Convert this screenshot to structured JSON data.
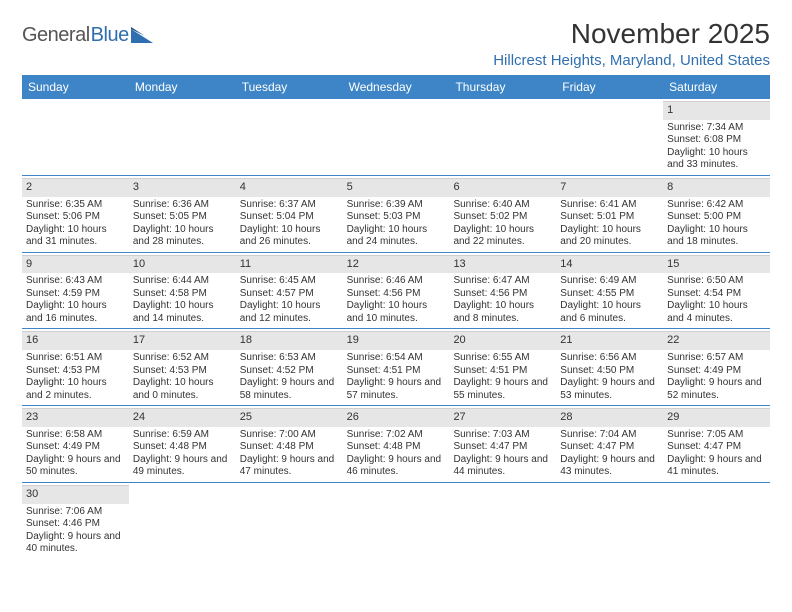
{
  "brand": {
    "part1": "General",
    "part2": "Blue"
  },
  "title": "November 2025",
  "location": "Hillcrest Heights, Maryland, United States",
  "colors": {
    "header_bar": "#3d85c6",
    "accent_text": "#2f6faf",
    "daynum_bg": "#e6e6e6",
    "text": "#333333",
    "background": "#ffffff"
  },
  "day_names": [
    "Sunday",
    "Monday",
    "Tuesday",
    "Wednesday",
    "Thursday",
    "Friday",
    "Saturday"
  ],
  "weeks": [
    [
      {
        "n": "",
        "sr": "",
        "ss": "",
        "dl": ""
      },
      {
        "n": "",
        "sr": "",
        "ss": "",
        "dl": ""
      },
      {
        "n": "",
        "sr": "",
        "ss": "",
        "dl": ""
      },
      {
        "n": "",
        "sr": "",
        "ss": "",
        "dl": ""
      },
      {
        "n": "",
        "sr": "",
        "ss": "",
        "dl": ""
      },
      {
        "n": "",
        "sr": "",
        "ss": "",
        "dl": ""
      },
      {
        "n": "1",
        "sr": "Sunrise: 7:34 AM",
        "ss": "Sunset: 6:08 PM",
        "dl": "Daylight: 10 hours and 33 minutes."
      }
    ],
    [
      {
        "n": "2",
        "sr": "Sunrise: 6:35 AM",
        "ss": "Sunset: 5:06 PM",
        "dl": "Daylight: 10 hours and 31 minutes."
      },
      {
        "n": "3",
        "sr": "Sunrise: 6:36 AM",
        "ss": "Sunset: 5:05 PM",
        "dl": "Daylight: 10 hours and 28 minutes."
      },
      {
        "n": "4",
        "sr": "Sunrise: 6:37 AM",
        "ss": "Sunset: 5:04 PM",
        "dl": "Daylight: 10 hours and 26 minutes."
      },
      {
        "n": "5",
        "sr": "Sunrise: 6:39 AM",
        "ss": "Sunset: 5:03 PM",
        "dl": "Daylight: 10 hours and 24 minutes."
      },
      {
        "n": "6",
        "sr": "Sunrise: 6:40 AM",
        "ss": "Sunset: 5:02 PM",
        "dl": "Daylight: 10 hours and 22 minutes."
      },
      {
        "n": "7",
        "sr": "Sunrise: 6:41 AM",
        "ss": "Sunset: 5:01 PM",
        "dl": "Daylight: 10 hours and 20 minutes."
      },
      {
        "n": "8",
        "sr": "Sunrise: 6:42 AM",
        "ss": "Sunset: 5:00 PM",
        "dl": "Daylight: 10 hours and 18 minutes."
      }
    ],
    [
      {
        "n": "9",
        "sr": "Sunrise: 6:43 AM",
        "ss": "Sunset: 4:59 PM",
        "dl": "Daylight: 10 hours and 16 minutes."
      },
      {
        "n": "10",
        "sr": "Sunrise: 6:44 AM",
        "ss": "Sunset: 4:58 PM",
        "dl": "Daylight: 10 hours and 14 minutes."
      },
      {
        "n": "11",
        "sr": "Sunrise: 6:45 AM",
        "ss": "Sunset: 4:57 PM",
        "dl": "Daylight: 10 hours and 12 minutes."
      },
      {
        "n": "12",
        "sr": "Sunrise: 6:46 AM",
        "ss": "Sunset: 4:56 PM",
        "dl": "Daylight: 10 hours and 10 minutes."
      },
      {
        "n": "13",
        "sr": "Sunrise: 6:47 AM",
        "ss": "Sunset: 4:56 PM",
        "dl": "Daylight: 10 hours and 8 minutes."
      },
      {
        "n": "14",
        "sr": "Sunrise: 6:49 AM",
        "ss": "Sunset: 4:55 PM",
        "dl": "Daylight: 10 hours and 6 minutes."
      },
      {
        "n": "15",
        "sr": "Sunrise: 6:50 AM",
        "ss": "Sunset: 4:54 PM",
        "dl": "Daylight: 10 hours and 4 minutes."
      }
    ],
    [
      {
        "n": "16",
        "sr": "Sunrise: 6:51 AM",
        "ss": "Sunset: 4:53 PM",
        "dl": "Daylight: 10 hours and 2 minutes."
      },
      {
        "n": "17",
        "sr": "Sunrise: 6:52 AM",
        "ss": "Sunset: 4:53 PM",
        "dl": "Daylight: 10 hours and 0 minutes."
      },
      {
        "n": "18",
        "sr": "Sunrise: 6:53 AM",
        "ss": "Sunset: 4:52 PM",
        "dl": "Daylight: 9 hours and 58 minutes."
      },
      {
        "n": "19",
        "sr": "Sunrise: 6:54 AM",
        "ss": "Sunset: 4:51 PM",
        "dl": "Daylight: 9 hours and 57 minutes."
      },
      {
        "n": "20",
        "sr": "Sunrise: 6:55 AM",
        "ss": "Sunset: 4:51 PM",
        "dl": "Daylight: 9 hours and 55 minutes."
      },
      {
        "n": "21",
        "sr": "Sunrise: 6:56 AM",
        "ss": "Sunset: 4:50 PM",
        "dl": "Daylight: 9 hours and 53 minutes."
      },
      {
        "n": "22",
        "sr": "Sunrise: 6:57 AM",
        "ss": "Sunset: 4:49 PM",
        "dl": "Daylight: 9 hours and 52 minutes."
      }
    ],
    [
      {
        "n": "23",
        "sr": "Sunrise: 6:58 AM",
        "ss": "Sunset: 4:49 PM",
        "dl": "Daylight: 9 hours and 50 minutes."
      },
      {
        "n": "24",
        "sr": "Sunrise: 6:59 AM",
        "ss": "Sunset: 4:48 PM",
        "dl": "Daylight: 9 hours and 49 minutes."
      },
      {
        "n": "25",
        "sr": "Sunrise: 7:00 AM",
        "ss": "Sunset: 4:48 PM",
        "dl": "Daylight: 9 hours and 47 minutes."
      },
      {
        "n": "26",
        "sr": "Sunrise: 7:02 AM",
        "ss": "Sunset: 4:48 PM",
        "dl": "Daylight: 9 hours and 46 minutes."
      },
      {
        "n": "27",
        "sr": "Sunrise: 7:03 AM",
        "ss": "Sunset: 4:47 PM",
        "dl": "Daylight: 9 hours and 44 minutes."
      },
      {
        "n": "28",
        "sr": "Sunrise: 7:04 AM",
        "ss": "Sunset: 4:47 PM",
        "dl": "Daylight: 9 hours and 43 minutes."
      },
      {
        "n": "29",
        "sr": "Sunrise: 7:05 AM",
        "ss": "Sunset: 4:47 PM",
        "dl": "Daylight: 9 hours and 41 minutes."
      }
    ],
    [
      {
        "n": "30",
        "sr": "Sunrise: 7:06 AM",
        "ss": "Sunset: 4:46 PM",
        "dl": "Daylight: 9 hours and 40 minutes."
      },
      {
        "n": "",
        "sr": "",
        "ss": "",
        "dl": ""
      },
      {
        "n": "",
        "sr": "",
        "ss": "",
        "dl": ""
      },
      {
        "n": "",
        "sr": "",
        "ss": "",
        "dl": ""
      },
      {
        "n": "",
        "sr": "",
        "ss": "",
        "dl": ""
      },
      {
        "n": "",
        "sr": "",
        "ss": "",
        "dl": ""
      },
      {
        "n": "",
        "sr": "",
        "ss": "",
        "dl": ""
      }
    ]
  ]
}
